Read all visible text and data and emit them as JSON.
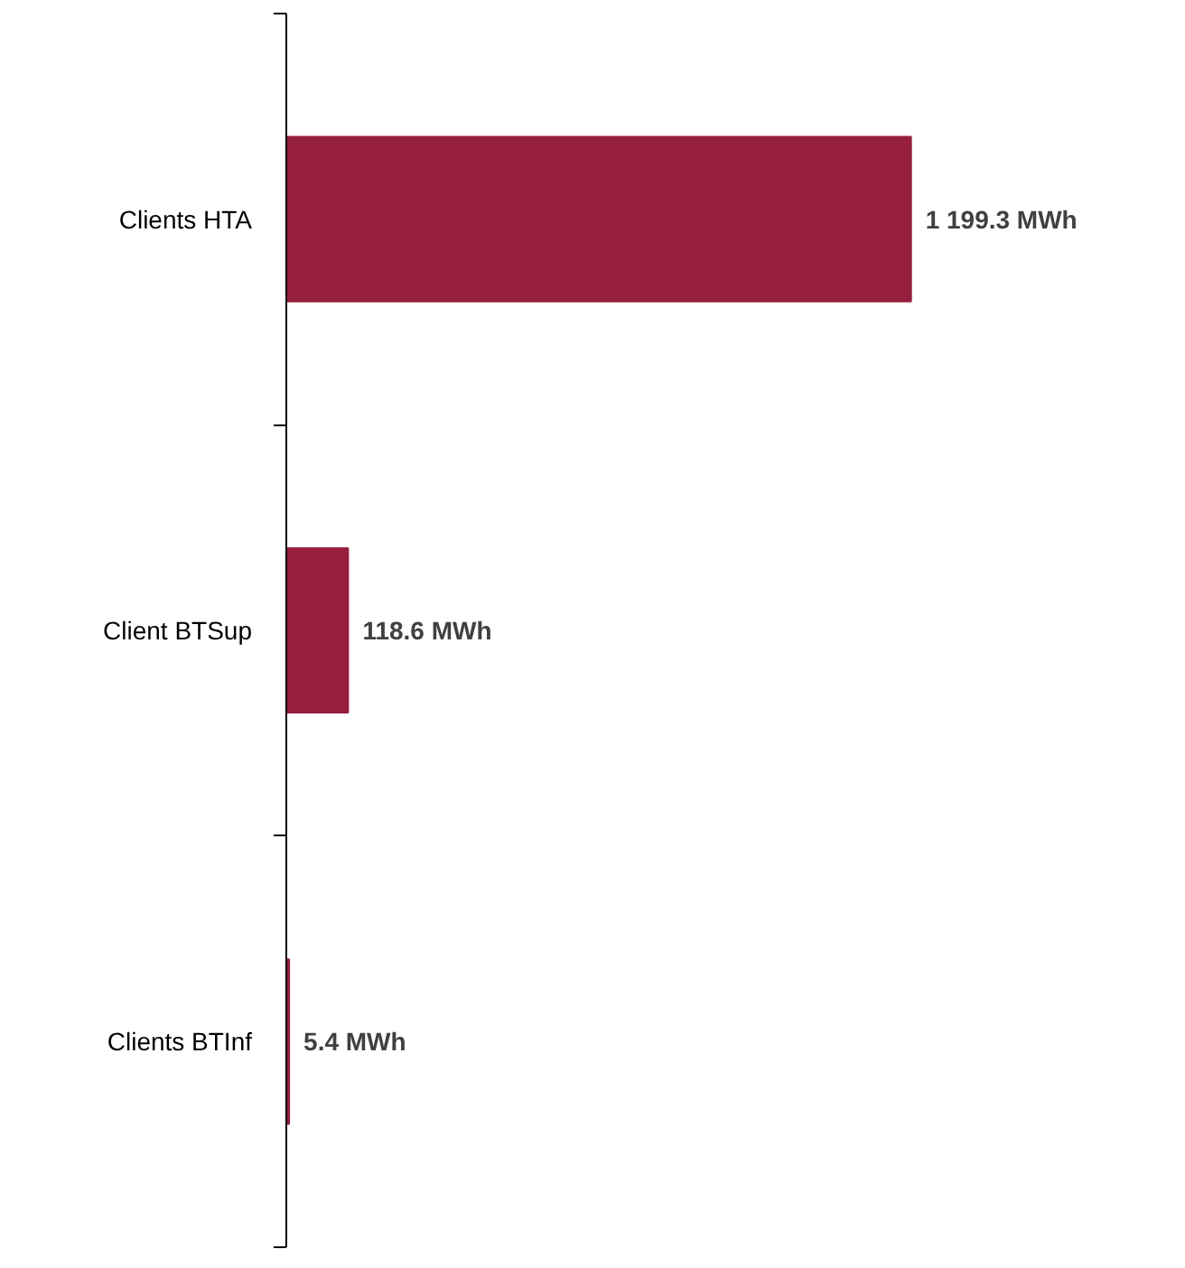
{
  "chart_data": {
    "type": "bar",
    "orientation": "horizontal",
    "categories": [
      "Clients HTA",
      "Client BTSup",
      "Clients BTInf"
    ],
    "values": [
      1199.3,
      118.6,
      5.4
    ],
    "value_labels": [
      "1 199.3 MWh",
      "118.6 MWh",
      "5.4 MWh"
    ],
    "color": "#951f3d"
  }
}
